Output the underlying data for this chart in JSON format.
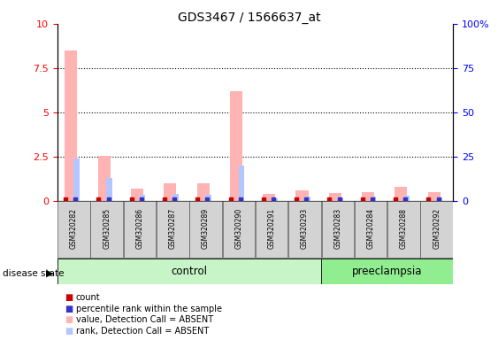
{
  "title": "GDS3467 / 1566637_at",
  "samples": [
    "GSM320282",
    "GSM320285",
    "GSM320286",
    "GSM320287",
    "GSM320289",
    "GSM320290",
    "GSM320291",
    "GSM320293",
    "GSM320283",
    "GSM320284",
    "GSM320288",
    "GSM320292"
  ],
  "n_control": 8,
  "n_preeclampsia": 4,
  "value_absent": [
    8.5,
    2.55,
    0.7,
    1.0,
    1.0,
    6.2,
    0.4,
    0.6,
    0.45,
    0.5,
    0.8,
    0.5
  ],
  "rank_absent": [
    2.4,
    1.3,
    0.35,
    0.4,
    0.35,
    2.0,
    0.15,
    0.25,
    0.2,
    0.25,
    0.3,
    0.2
  ],
  "ylim": [
    0,
    10
  ],
  "yticks_left": [
    0,
    2.5,
    5.0,
    7.5,
    10
  ],
  "yticks_right": [
    0,
    25,
    50,
    75,
    100
  ],
  "ytick_labels_left": [
    "0",
    "2.5",
    "5",
    "7.5",
    "10"
  ],
  "ytick_labels_right": [
    "0",
    "25",
    "50",
    "75",
    "100%"
  ],
  "grid_values": [
    2.5,
    5.0,
    7.5
  ],
  "color_value_absent": "#ffb3b3",
  "color_rank_absent": "#b3c6ff",
  "color_count": "#cc0000",
  "color_rank": "#3333cc",
  "color_control_bg": "#c8f5c8",
  "color_preeclampsia_bg": "#90ee90",
  "color_sample_bg": "#d3d3d3",
  "figsize": [
    5.63,
    3.84
  ],
  "dpi": 100
}
